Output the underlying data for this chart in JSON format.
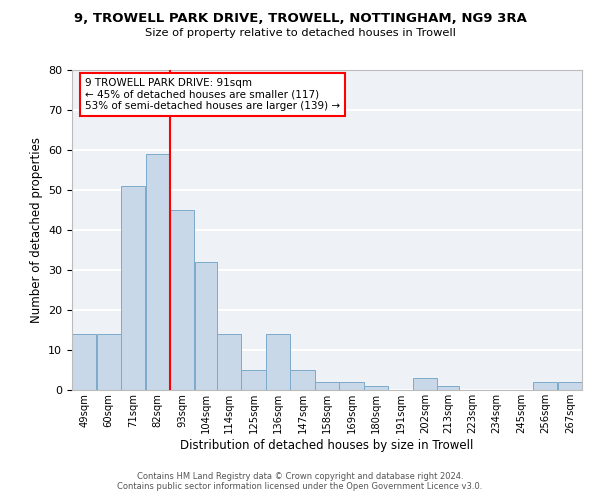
{
  "title": "9, TROWELL PARK DRIVE, TROWELL, NOTTINGHAM, NG9 3RA",
  "subtitle": "Size of property relative to detached houses in Trowell",
  "xlabel": "Distribution of detached houses by size in Trowell",
  "ylabel": "Number of detached properties",
  "bar_color": "#c8d8e8",
  "bar_edge_color": "#7aaaca",
  "background_color": "#eef2f7",
  "grid_color": "white",
  "vline_x": 93,
  "vline_color": "red",
  "categories": [
    "49sqm",
    "60sqm",
    "71sqm",
    "82sqm",
    "93sqm",
    "104sqm",
    "114sqm",
    "125sqm",
    "136sqm",
    "147sqm",
    "158sqm",
    "169sqm",
    "180sqm",
    "191sqm",
    "202sqm",
    "213sqm",
    "223sqm",
    "234sqm",
    "245sqm",
    "256sqm",
    "267sqm"
  ],
  "bin_edges": [
    49,
    60,
    71,
    82,
    93,
    104,
    114,
    125,
    136,
    147,
    158,
    169,
    180,
    191,
    202,
    213,
    223,
    234,
    245,
    256,
    267,
    278
  ],
  "values": [
    14,
    14,
    51,
    59,
    45,
    32,
    14,
    5,
    14,
    5,
    2,
    2,
    1,
    0,
    3,
    1,
    0,
    0,
    0,
    2,
    2
  ],
  "ylim": [
    0,
    80
  ],
  "yticks": [
    0,
    10,
    20,
    30,
    40,
    50,
    60,
    70,
    80
  ],
  "annotation_text": "9 TROWELL PARK DRIVE: 91sqm\n← 45% of detached houses are smaller (117)\n53% of semi-detached houses are larger (139) →",
  "footer1": "Contains HM Land Registry data © Crown copyright and database right 2024.",
  "footer2": "Contains public sector information licensed under the Open Government Licence v3.0."
}
